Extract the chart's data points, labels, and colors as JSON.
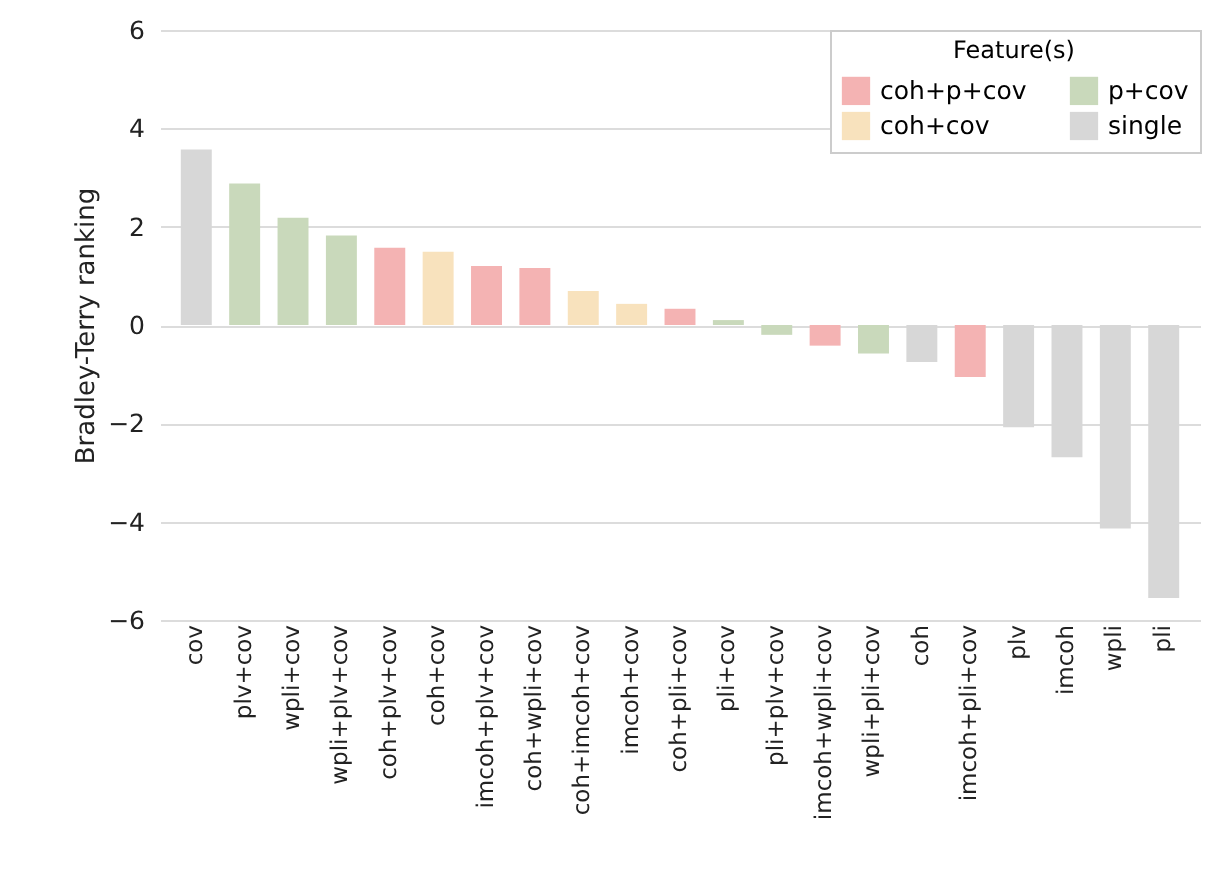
{
  "chart_data": {
    "type": "bar",
    "ylabel": "Bradley-Terry ranking",
    "legend_title": "Feature(s)",
    "categories": [
      "cov",
      "plv+cov",
      "wpli+cov",
      "wpli+plv+cov",
      "coh+plv+cov",
      "coh+cov",
      "imcoh+plv+cov",
      "coh+wpli+cov",
      "coh+imcoh+cov",
      "imcoh+cov",
      "coh+pli+cov",
      "pli+cov",
      "pli+plv+cov",
      "imcoh+wpli+cov",
      "wpli+pli+cov",
      "coh",
      "imcoh+pli+cov",
      "plv",
      "imcoh",
      "wpli",
      "pli"
    ],
    "series": [
      {
        "name": "coh+p+cov",
        "color": "#f4b3b3",
        "values": [
          null,
          null,
          null,
          null,
          1.57,
          null,
          1.2,
          1.16,
          null,
          null,
          0.33,
          null,
          null,
          -0.42,
          null,
          null,
          -1.06,
          null,
          null,
          null,
          null
        ]
      },
      {
        "name": "coh+cov",
        "color": "#f8e2bd",
        "values": [
          null,
          null,
          null,
          null,
          null,
          1.49,
          null,
          null,
          0.69,
          0.43,
          null,
          null,
          null,
          null,
          null,
          null,
          null,
          null,
          null,
          null,
          null
        ]
      },
      {
        "name": "p+cov",
        "color": "#c9d9bb",
        "values": [
          null,
          2.88,
          2.18,
          1.82,
          null,
          null,
          null,
          null,
          null,
          null,
          null,
          0.1,
          -0.2,
          null,
          -0.58,
          null,
          null,
          null,
          null,
          null,
          null
        ]
      },
      {
        "name": "single",
        "color": "#d7d7d7",
        "values": [
          3.57,
          null,
          null,
          null,
          null,
          null,
          null,
          null,
          null,
          null,
          null,
          null,
          null,
          null,
          null,
          -0.75,
          null,
          -2.08,
          -2.69,
          -4.14,
          -5.55
        ]
      }
    ],
    "ylim": [
      -6,
      6
    ],
    "yticks": [
      -6,
      -4,
      -2,
      0,
      2,
      4,
      6
    ],
    "grid": "y",
    "legend": "top right"
  }
}
